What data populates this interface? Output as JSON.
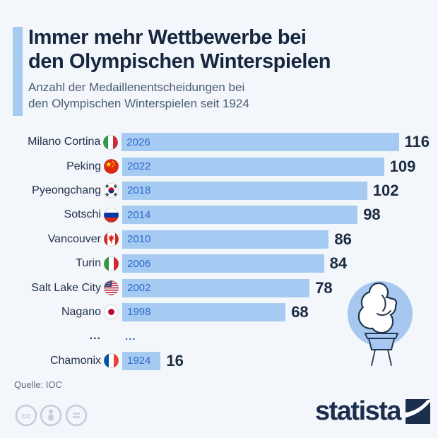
{
  "header": {
    "title_line1": "Immer mehr Wettbewerbe bei",
    "title_line2": "den Olympischen Winterspielen",
    "subtitle_line1": "Anzahl der Medaillenentscheidungen bei",
    "subtitle_line2": "den Olympischen Winterspielen seit 1924"
  },
  "footer": {
    "source": "Quelle: IOC",
    "brand": "statista",
    "license_icons": [
      "cc-icon",
      "attribution-person-icon",
      "equals-icon"
    ]
  },
  "icons": {
    "torch": "olympic-torch-illustration",
    "brand_mark": "statista-logo-mark"
  },
  "colors": {
    "background": "#f3f6fa",
    "bar": "#a6cbf3",
    "accent_bar": "#a6cbf3",
    "title": "#16263e",
    "subtitle": "#4a5d73",
    "year_text": "#2d6bc9",
    "value_text": "#1b2b42",
    "label_text": "#21314a",
    "source_text": "#5b6b7d",
    "brand_navy": "#1b2f4d",
    "torch_outline": "#24364f",
    "torch_circle": "#a6c8f0",
    "license_icon": "#c5ced8"
  },
  "chart_data": {
    "type": "bar",
    "orientation": "horizontal",
    "title": "Immer mehr Wettbewerbe bei den Olympischen Winterspielen",
    "subtitle": "Anzahl der Medaillenentscheidungen bei den Olympischen Winterspielen seit 1924",
    "xlim": [
      0,
      120
    ],
    "grid": false,
    "legend": "none",
    "categories": [
      "Milano Cortina 2026",
      "Peking 2022",
      "Pyeongchang 2018",
      "Sotschi 2014",
      "Vancouver 2010",
      "Turin 2006",
      "Salt Lake City 2002",
      "Nagano 1998",
      "...",
      "Chamonix 1924"
    ],
    "values": [
      116,
      109,
      102,
      98,
      86,
      84,
      78,
      68,
      null,
      16
    ],
    "rows": [
      {
        "city": "Milano Cortina",
        "flag": "flag-italy-icon",
        "country": "italy",
        "year": "2026",
        "value": 116
      },
      {
        "city": "Peking",
        "flag": "flag-china-icon",
        "country": "china",
        "year": "2022",
        "value": 109
      },
      {
        "city": "Pyeongchang",
        "flag": "flag-south-korea-icon",
        "country": "south-korea",
        "year": "2018",
        "value": 102
      },
      {
        "city": "Sotschi",
        "flag": "flag-russia-icon",
        "country": "russia",
        "year": "2014",
        "value": 98
      },
      {
        "city": "Vancouver",
        "flag": "flag-canada-icon",
        "country": "canada",
        "year": "2010",
        "value": 86
      },
      {
        "city": "Turin",
        "flag": "flag-italy-icon",
        "country": "italy",
        "year": "2006",
        "value": 84
      },
      {
        "city": "Salt Lake City",
        "flag": "flag-usa-icon",
        "country": "usa",
        "year": "2002",
        "value": 78
      },
      {
        "city": "Nagano",
        "flag": "flag-japan-icon",
        "country": "japan",
        "year": "1998",
        "value": 68
      },
      {
        "ellipsis": true,
        "label_text": "...",
        "bar_text": "..."
      },
      {
        "city": "Chamonix",
        "flag": "flag-france-icon",
        "country": "france",
        "year": "1924",
        "value": 16
      }
    ]
  }
}
